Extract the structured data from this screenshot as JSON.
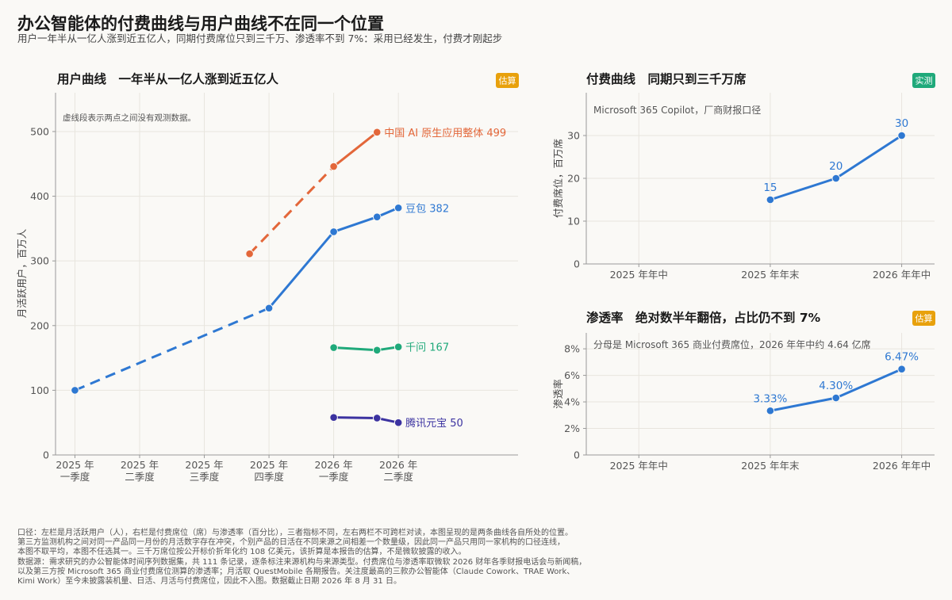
{
  "title": "办公智能体的付费曲线与用户曲线不在同一个位置",
  "subtitle": "用户一年半从一亿人涨到近五亿人，同期付费席位只到三千万、渗透率不到 7%：采用已经发生，付费才刚起步",
  "chart_data": [
    {
      "id": "users",
      "type": "line",
      "title": "用户曲线　一年半从一亿人涨到近五亿人",
      "badge": "估算",
      "note": "虚线段表示两点之间没有观测数据。",
      "ylabel": "月活跃用户，百万人",
      "ylim": [
        0,
        560
      ],
      "yticks": [
        0,
        100,
        200,
        300,
        400,
        500
      ],
      "xlim": [
        -0.3,
        6.85
      ],
      "categories": [
        "2025 年一季度",
        "2025 年二季度",
        "2025 年三季度",
        "2025 年四季度",
        "2026 年一季度",
        "2026 年二季度"
      ],
      "category_labels": [
        [
          "2025 年",
          "一季度"
        ],
        [
          "2025 年",
          "二季度"
        ],
        [
          "2025 年",
          "三季度"
        ],
        [
          "2025 年",
          "四季度"
        ],
        [
          "2026 年",
          "一季度"
        ],
        [
          "2026 年",
          "二季度"
        ]
      ],
      "grid": true,
      "series": [
        {
          "name": "中国 AI 原生应用整体",
          "end_label": "中国 AI 原生应用整体 499",
          "color": "#e3673a",
          "points": [
            [
              2.7,
              311
            ],
            [
              4,
              446
            ],
            [
              4.67,
              499
            ]
          ],
          "solid": [
            [
              4,
              446
            ],
            [
              4.67,
              499
            ]
          ],
          "dashed": [
            [
              2.7,
              311
            ],
            [
              4,
              446
            ]
          ]
        },
        {
          "name": "豆包",
          "end_label": "豆包 382",
          "color": "#2e78d2",
          "points": [
            [
              0,
              100
            ],
            [
              3,
              227
            ],
            [
              4,
              345
            ],
            [
              4.67,
              368
            ],
            [
              5,
              382
            ]
          ],
          "solid": [
            [
              3,
              227
            ],
            [
              4,
              345
            ],
            [
              4.67,
              368
            ],
            [
              5,
              382
            ]
          ],
          "dashed": [
            [
              0,
              100
            ],
            [
              3,
              227
            ]
          ]
        },
        {
          "name": "千问",
          "end_label": "千问 167",
          "color": "#1fa97a",
          "points": [
            [
              4,
              166
            ],
            [
              4.67,
              162
            ],
            [
              5,
              167
            ]
          ],
          "solid": [
            [
              4,
              166
            ],
            [
              4.67,
              162
            ],
            [
              5,
              167
            ]
          ],
          "dashed": []
        },
        {
          "name": "腾讯元宝",
          "end_label": "腾讯元宝 50",
          "color": "#3b32a0",
          "points": [
            [
              4,
              58
            ],
            [
              4.67,
              57
            ],
            [
              5,
              50
            ]
          ],
          "solid": [
            [
              4,
              58
            ],
            [
              4.67,
              57
            ],
            [
              5,
              50
            ]
          ],
          "dashed": []
        }
      ]
    },
    {
      "id": "seats",
      "type": "line",
      "title": "付费曲线　同期只到三千万席",
      "badge": "实测",
      "note": "Microsoft 365 Copilot，厂商财报口径",
      "ylabel": "付费席位，百万席",
      "ylim": [
        0,
        40
      ],
      "yticks": [
        0,
        10,
        20,
        30
      ],
      "xlim": [
        -0.4,
        2.25
      ],
      "categories": [
        "2025 年年中",
        "2025 年年末",
        "2026 年年中"
      ],
      "grid": true,
      "series": [
        {
          "name": "Microsoft 365 Copilot",
          "color": "#2e78d2",
          "points": [
            [
              1,
              15
            ],
            [
              1.5,
              20
            ],
            [
              2,
              30
            ]
          ],
          "point_labels": [
            "15",
            "20",
            "30"
          ]
        }
      ]
    },
    {
      "id": "penetration",
      "type": "line",
      "title": "渗透率　绝对数半年翻倍，占比仍不到 7%",
      "badge": "估算",
      "note": "分母是 Microsoft 365 商业付费席位，2026 年年中约 4.64 亿席",
      "ylabel": "渗透率",
      "ylim": [
        0,
        9.2
      ],
      "yticks": [
        0,
        2,
        4,
        6,
        8
      ],
      "ytick_labels": [
        "0",
        "2%",
        "4%",
        "6%",
        "8%"
      ],
      "xlim": [
        -0.4,
        2.25
      ],
      "categories": [
        "2025 年年中",
        "2025 年年末",
        "2026 年年中"
      ],
      "grid": true,
      "series": [
        {
          "name": "渗透率",
          "color": "#2e78d2",
          "points": [
            [
              1,
              3.33
            ],
            [
              1.5,
              4.3
            ],
            [
              2,
              6.47
            ]
          ],
          "point_labels": [
            "3.33%",
            "4.30%",
            "6.47%"
          ]
        }
      ]
    }
  ],
  "colors": {
    "estimate_badge": "#e8a10c",
    "measured_badge": "#1fa97a",
    "grid": "#e8e5de",
    "axis": "#999999"
  },
  "footer": [
    "口径：左栏是月活跃用户（人），右栏是付费席位（席）与渗透率（百分比），三者指标不同，左右两栏不可跨栏对读，本图呈现的是两条曲线各自所处的位置。",
    "第三方监测机构之间对同一产品同一月份的月活数字存在冲突，个别产品的日活在不同来源之间相差一个数量级，因此同一产品只用同一家机构的口径连线，",
    "本图不取平均，本图不任选其一。三千万席位按公开标价折年化约 108 亿美元，该折算是本报告的估算，不是微软披露的收入。",
    "数据源：需求研究的办公智能体时间序列数据集，共 111 条记录，逐条标注来源机构与来源类型。付费席位与渗透率取微软 2026 财年各季财报电话会与新闻稿，",
    "以及第三方按 Microsoft 365 商业付费席位测算的渗透率；月活取 QuestMobile 各期报告。关注度最高的三款办公智能体（Claude Cowork、TRAE Work、",
    "Kimi Work）至今未披露装机量、日活、月活与付费席位，因此不入图。数据截止日期 2026 年 8 月 31 日。"
  ]
}
